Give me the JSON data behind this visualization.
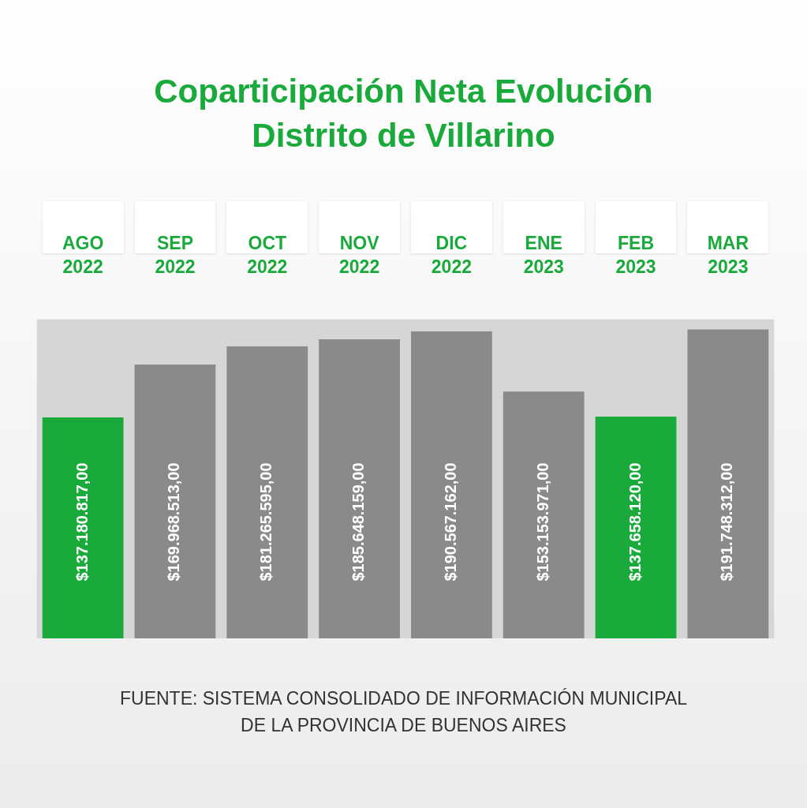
{
  "chart_data": {
    "type": "bar",
    "title": "Coparticipación Neta Evolución Distrito de Villarino",
    "categories": [
      "AGO 2022",
      "SEP 2022",
      "OCT 2022",
      "NOV 2022",
      "DIC 2022",
      "ENE 2023",
      "FEB 2023",
      "MAR 2023"
    ],
    "values": [
      137180817,
      169968513,
      181265595,
      185648159,
      190567162,
      153153971,
      137658120,
      191748312
    ],
    "value_labels": [
      "$137.180.817,00",
      "$169.968.513,00",
      "$181.265.595,00",
      "$185.648.159,00",
      "$190.567.162,00",
      "$153.153.971,00",
      "$137.658.120,00",
      "$191.748.312,00"
    ],
    "colors": [
      "#1aaa3c",
      "#8a8a8a",
      "#8a8a8a",
      "#8a8a8a",
      "#8a8a8a",
      "#8a8a8a",
      "#1aaa3c",
      "#8a8a8a"
    ],
    "ylim": [
      0,
      198000000
    ],
    "bands": [
      {
        "axis": "y",
        "from": 0,
        "to": 198000000,
        "color": "#d6d6d6"
      }
    ],
    "tick_labels": "x",
    "grid": false,
    "legend": false,
    "annotations": [
      "FUENTE: SISTEMA CONSOLIDADO DE INFORMACIÓN MUNICIPAL DE LA PROVINCIA DE BUENOS AIRES"
    ]
  }
}
